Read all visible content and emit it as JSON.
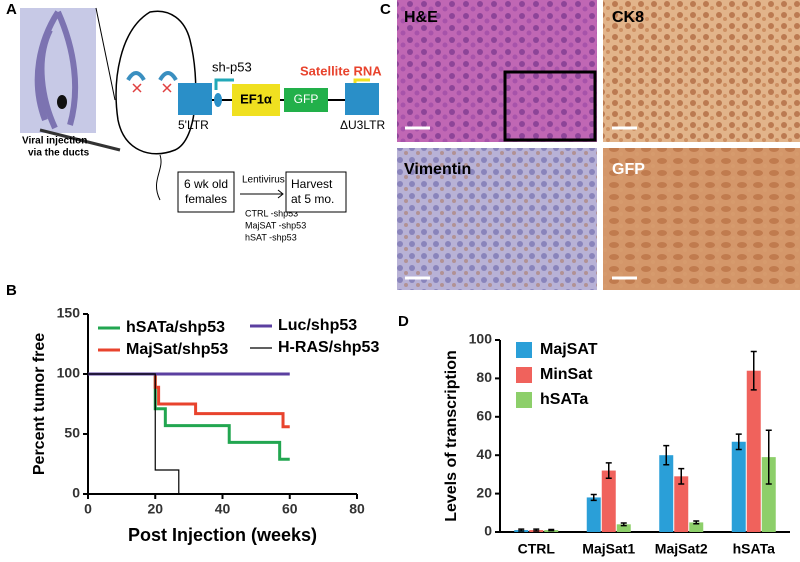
{
  "panel_labels": [
    "A",
    "B",
    "C",
    "D"
  ],
  "diagram": {
    "injection_note": [
      "Viral injection",
      "via the ducts"
    ],
    "construct": {
      "shrna": "sh-p53",
      "promoter": "EF1α",
      "reporter": "GFP",
      "satellite": "Satellite RNA",
      "ltr5": "5'LTR",
      "ltr3": "ΔU3LTR"
    },
    "workflow": {
      "start": [
        "6 wk old",
        "females"
      ],
      "step": "Lentivirus injection",
      "groups": [
        "CTRL  -shp53",
        "MajSAT -shp53",
        "hSAT -shp53"
      ],
      "end": [
        "Harvest",
        "at 5 mo."
      ]
    }
  },
  "histology": [
    "H&E",
    "CK8",
    "Vimentin",
    "GFP"
  ],
  "chart_data": [
    {
      "type": "line",
      "ylabel": "Percent tumor free",
      "xlabel": "Post Injection (weeks)",
      "xlim": [
        0,
        80
      ],
      "xticks": [
        0,
        20,
        40,
        60,
        80
      ],
      "ylim": [
        0,
        150
      ],
      "yticks": [
        0,
        50,
        100,
        150
      ],
      "series": [
        {
          "name": "hSATa/shp53",
          "color": "#22a650",
          "x": [
            0,
            20,
            20,
            23,
            23,
            42,
            42,
            57,
            57,
            60
          ],
          "values": [
            100,
            100,
            71,
            71,
            57,
            57,
            43,
            43,
            29,
            29
          ]
        },
        {
          "name": "MajSat/shp53",
          "color": "#e8432d",
          "x": [
            0,
            20,
            20,
            21,
            21,
            32,
            32,
            58,
            58,
            60
          ],
          "values": [
            100,
            100,
            89,
            89,
            75,
            75,
            67,
            67,
            56,
            56
          ]
        },
        {
          "name": "Luc/shp53",
          "color": "#5b3fa0",
          "x": [
            0,
            60
          ],
          "values": [
            100,
            100
          ]
        },
        {
          "name": "H-RAS/shp53",
          "color": "#000000",
          "x": [
            0,
            20,
            20,
            27,
            27
          ],
          "values": [
            100,
            100,
            20,
            20,
            0
          ]
        }
      ]
    },
    {
      "type": "bar",
      "ylabel": "Levels of  transcription",
      "categories": [
        "CTRL",
        "MajSat1",
        "MajSat2",
        "hSATa"
      ],
      "ylim": [
        0,
        100
      ],
      "yticks": [
        0,
        20,
        40,
        60,
        80,
        100
      ],
      "series": [
        {
          "name": "MajSAT",
          "color": "#2a9fd8",
          "values": [
            1,
            18,
            40,
            47
          ],
          "errors": [
            0.5,
            1.5,
            5,
            4
          ]
        },
        {
          "name": "MinSat",
          "color": "#f0625c",
          "values": [
            1,
            32,
            29,
            84
          ],
          "errors": [
            0.5,
            4,
            4,
            10
          ]
        },
        {
          "name": "hSATa",
          "color": "#8dcf6a",
          "values": [
            1,
            4,
            5,
            39
          ],
          "errors": [
            0.3,
            0.7,
            0.7,
            14
          ]
        }
      ]
    }
  ]
}
